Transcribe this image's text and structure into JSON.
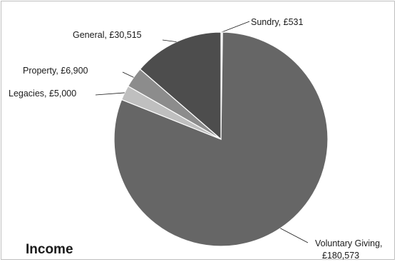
{
  "chart_data": {
    "type": "pie",
    "title": "Income",
    "slices": [
      {
        "name": "Sundry",
        "value": 531,
        "value_label": "£531",
        "label_text": "Sundry,  £531",
        "color": "#e6e6e6"
      },
      {
        "name": "Voluntary Giving",
        "value": 180573,
        "value_label": "£180,573",
        "label_lines": [
          "Voluntary Giving,",
          "£180,573"
        ],
        "color": "#666666"
      },
      {
        "name": "Legacies",
        "value": 5000,
        "value_label": "£5,000",
        "label_text": "Legacies, £5,000",
        "color": "#bfbfbf"
      },
      {
        "name": "Property",
        "value": 6900,
        "value_label": "£6,900",
        "label_text": "Property, £6,900",
        "color": "#8c8c8c"
      },
      {
        "name": "General",
        "value": 30515,
        "value_label": "£30,515",
        "label_text": "General,  £30,515",
        "color": "#4d4d4d"
      }
    ],
    "start_angle_deg": 0,
    "direction": "clockwise",
    "legend": "none"
  }
}
